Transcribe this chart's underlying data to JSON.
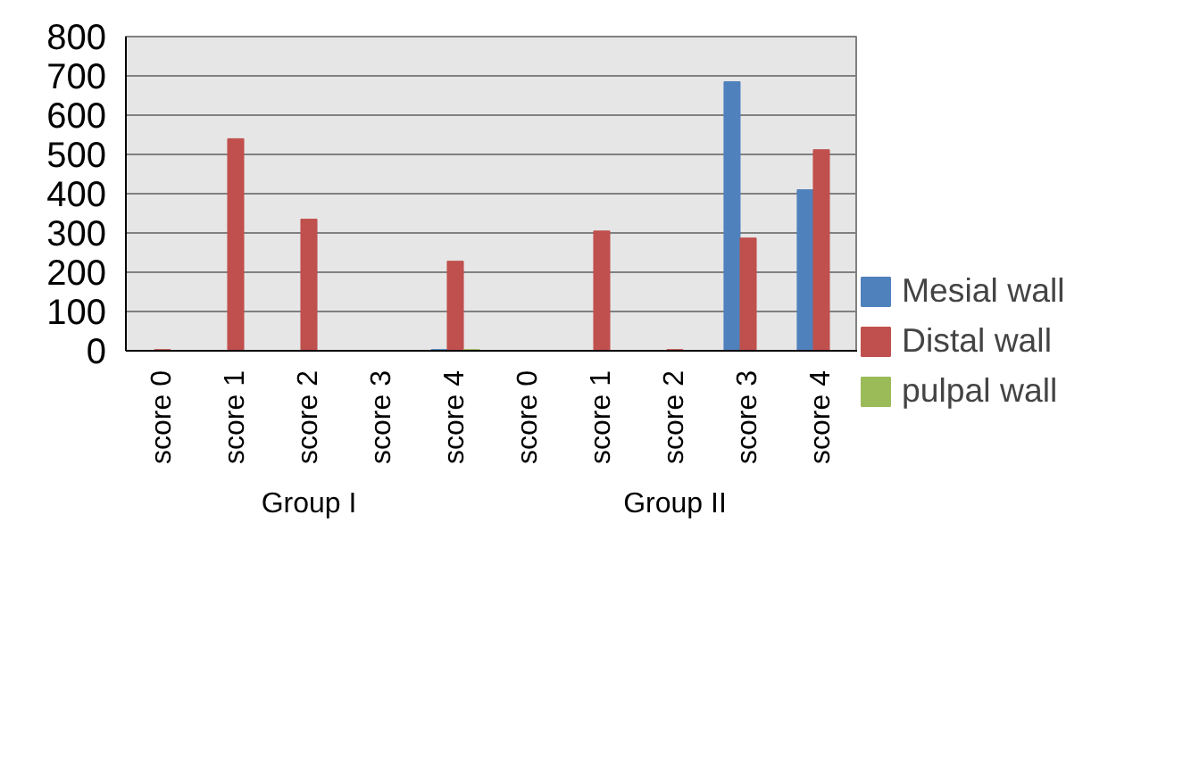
{
  "chart_data": {
    "type": "bar",
    "categories": [
      "score 0",
      "score 1",
      "score 2",
      "score 3",
      "score 4",
      "score 0",
      "score 1",
      "score 2",
      "score 3",
      "score 4"
    ],
    "annotations": [
      "Group I",
      "Group II"
    ],
    "series": [
      {
        "name": "Mesial wall",
        "color": "#4f81bd",
        "values": [
          0,
          0,
          0,
          0,
          3,
          0,
          0,
          0,
          685,
          410
        ]
      },
      {
        "name": "Distal wall",
        "color": "#c0504d",
        "values": [
          3,
          540,
          335,
          0,
          228,
          0,
          305,
          3,
          287,
          512
        ]
      },
      {
        "name": "pulpal wall",
        "color": "#9bbb59",
        "values": [
          0,
          0,
          0,
          0,
          3,
          0,
          0,
          0,
          0,
          0
        ]
      }
    ],
    "ylim": [
      0,
      800
    ],
    "yticks": [
      0,
      100,
      200,
      300,
      400,
      500,
      600,
      700,
      800
    ],
    "grid": "y",
    "legend": "right"
  }
}
